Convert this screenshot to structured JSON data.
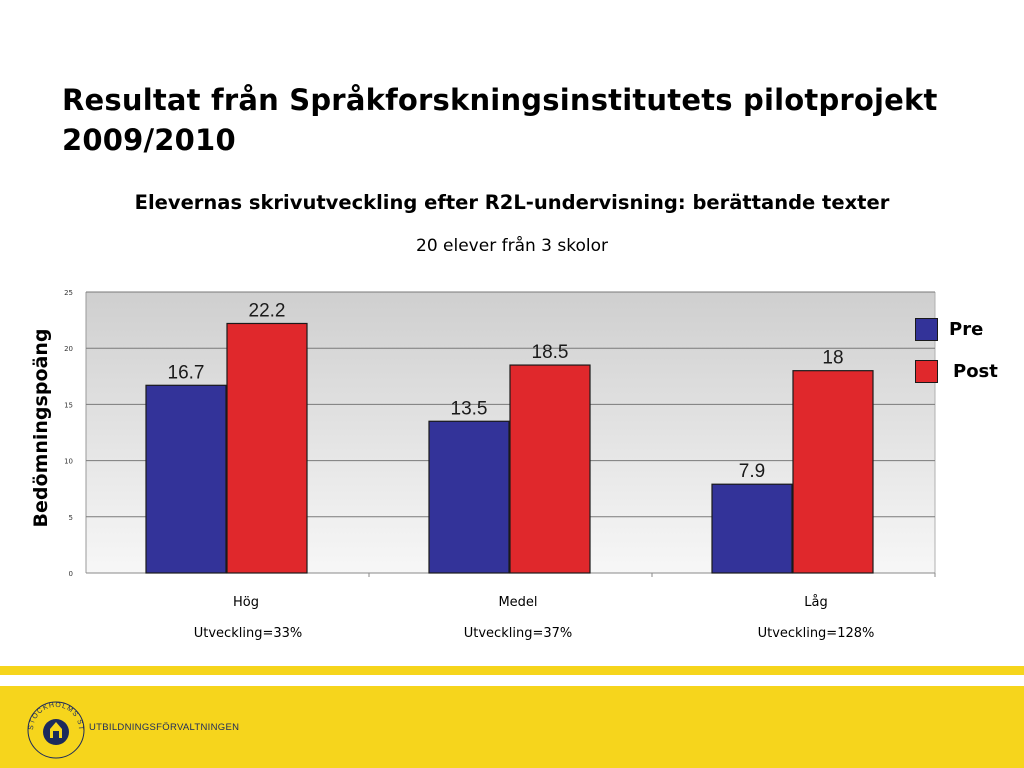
{
  "slide": {
    "title_line1": "Resultat från Språkforskningsinstitutets pilotprojekt",
    "title_line2": "2009/2010"
  },
  "chart_data": {
    "type": "bar",
    "title": "Elevernas skrivutveckling efter R2L-undervisning: berättande texter",
    "subtitle": "20 elever från 3 skolor",
    "ylabel": "Bedömningspoäng",
    "xlabel": "",
    "categories": [
      "Hög",
      "Medel",
      "Låg"
    ],
    "annotations": [
      "Utveckling=33%",
      "Utveckling=37%",
      "Utveckling=128%"
    ],
    "series": [
      {
        "name": "Pre",
        "color": "#333399",
        "values": [
          16.7,
          13.5,
          7.9
        ]
      },
      {
        "name": "Post",
        "color": "#e0282c",
        "values": [
          22.2,
          18.5,
          18
        ]
      }
    ],
    "data_labels": [
      [
        "16.7",
        "13.5",
        "7.9"
      ],
      [
        "22.2",
        "18.5",
        "18"
      ]
    ],
    "ylim": [
      0,
      25
    ],
    "yticks": [
      0,
      5,
      10,
      15,
      20,
      25
    ],
    "grid": true,
    "legend_position": "right"
  },
  "footer": {
    "organization": "UTBILDNINGSFÖRVALTNINGEN",
    "logo_text": "STOCKHOLMS STAD"
  },
  "colors": {
    "footer_yellow": "#f6d51c",
    "logo_blue": "#1c2a5c"
  }
}
